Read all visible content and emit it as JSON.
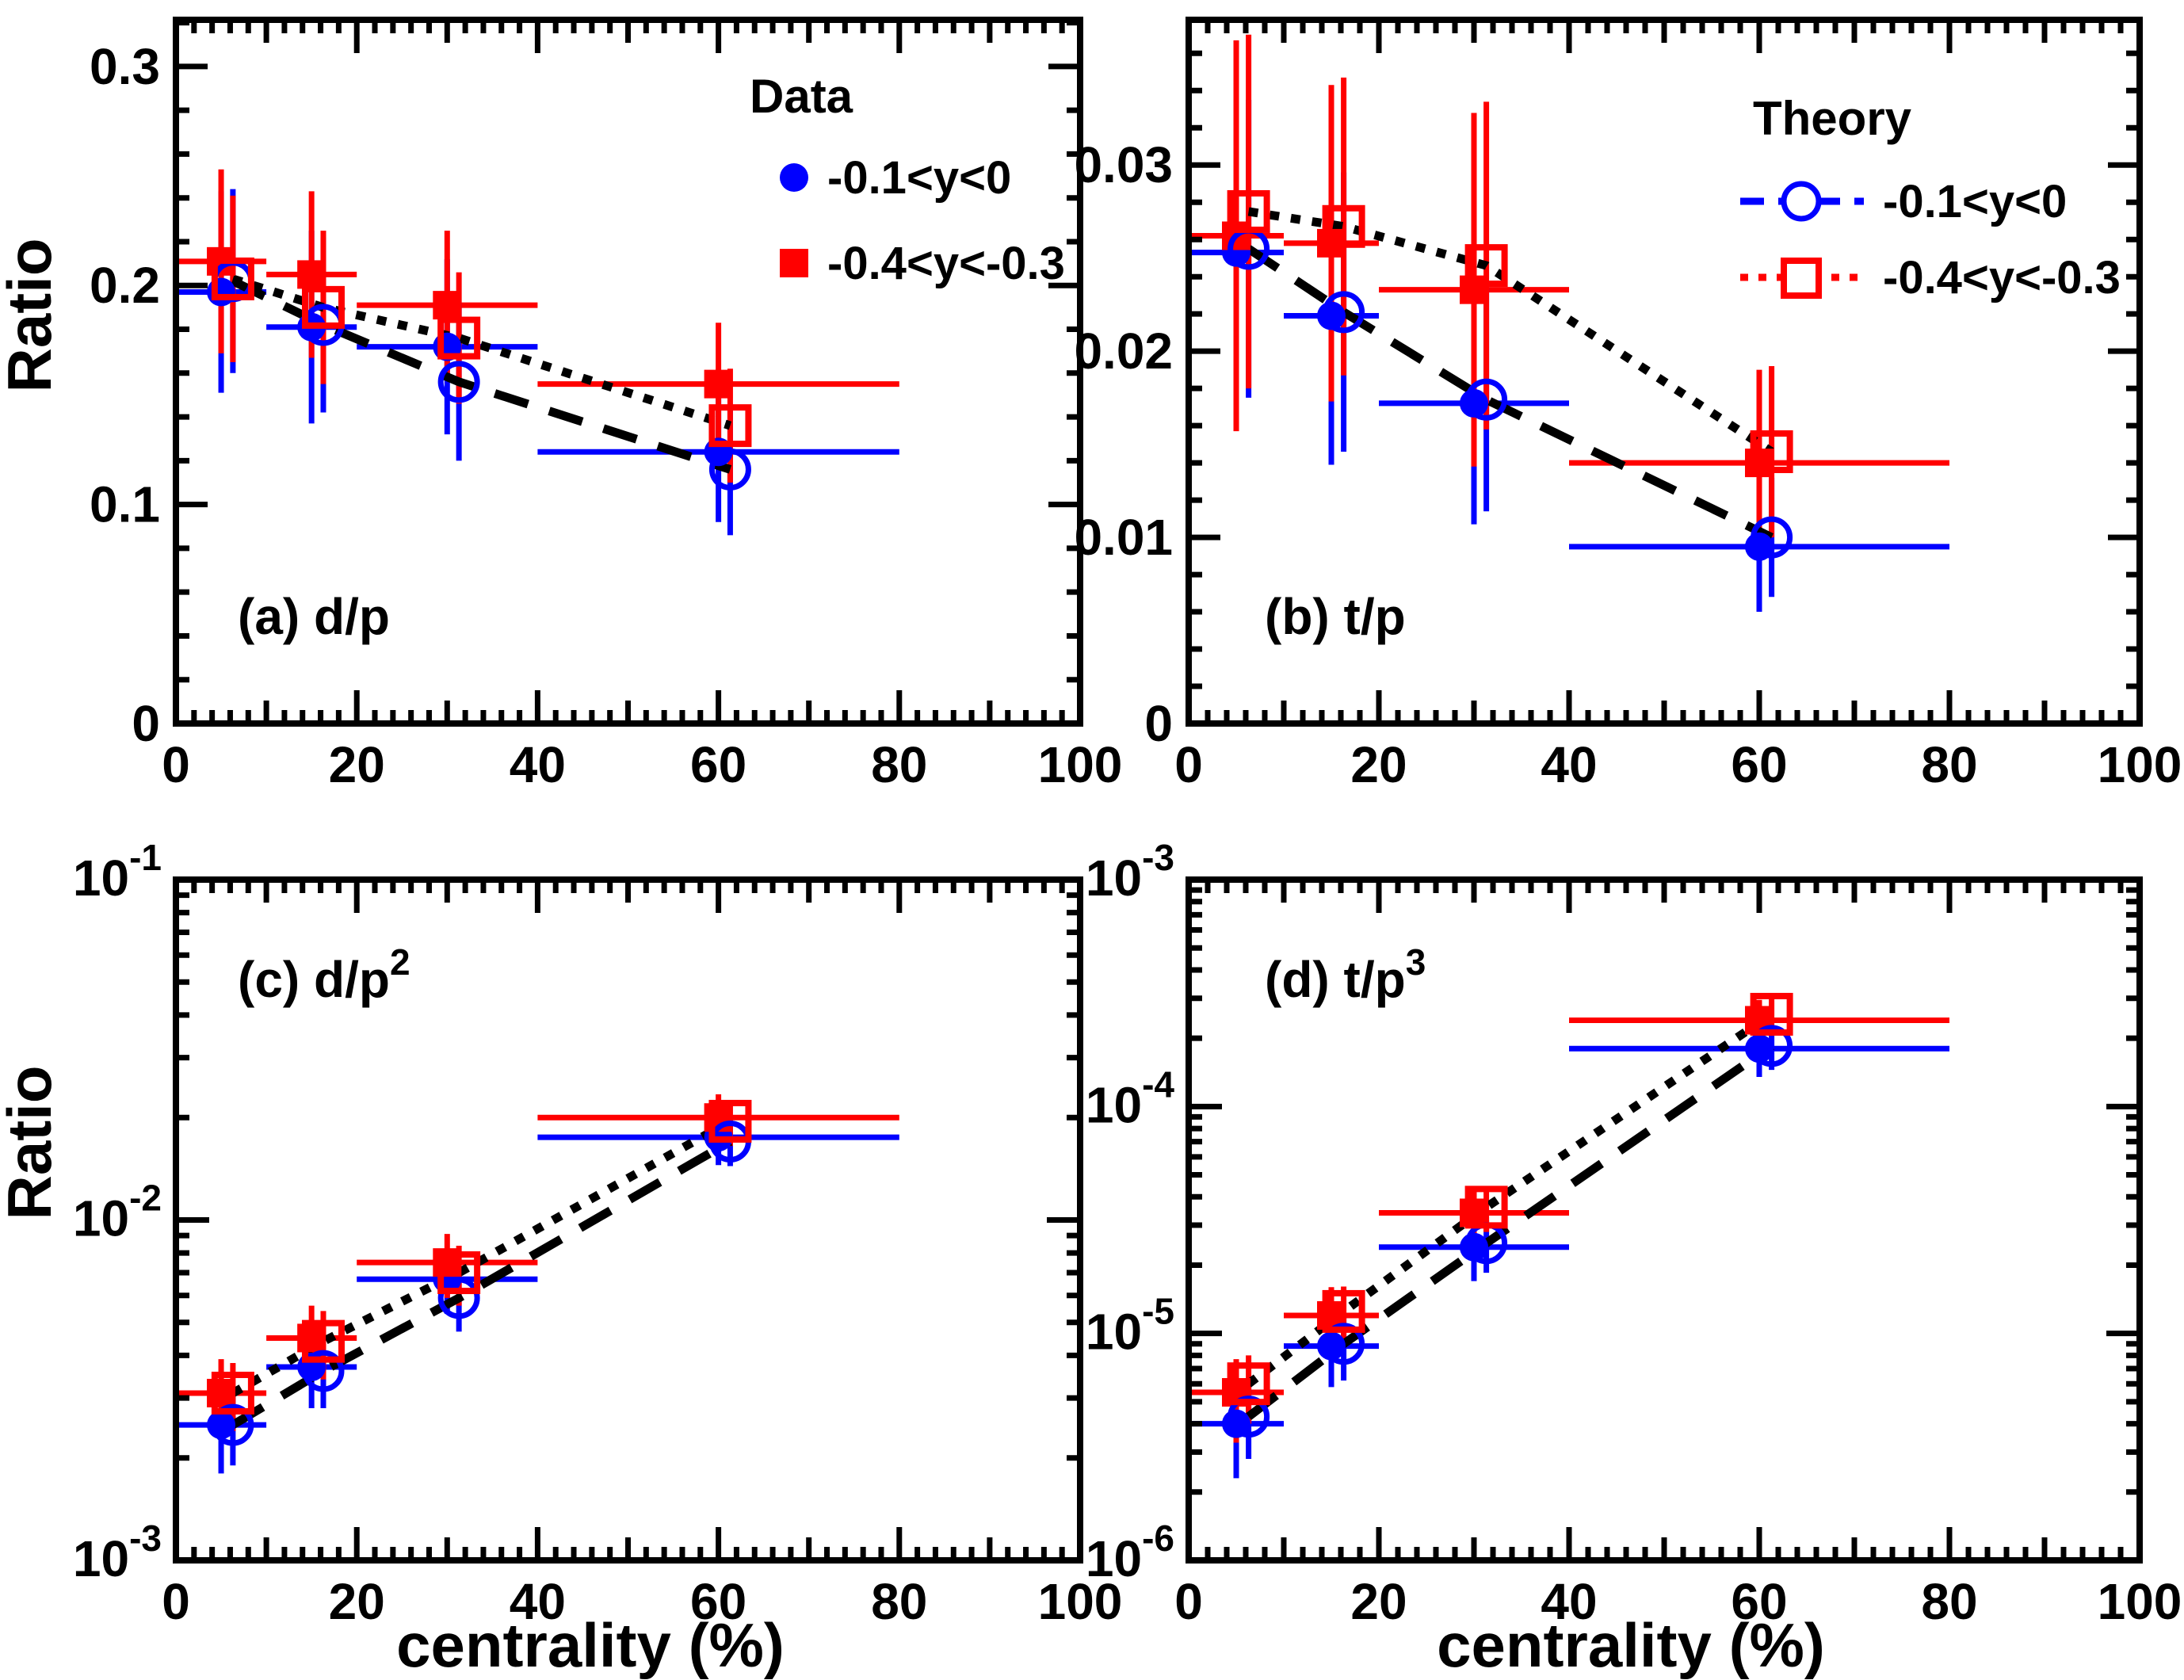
{
  "figure": {
    "background": "#ffffff",
    "axis_color": "#000000",
    "ylabel": "Ratio",
    "xlabel": "centrality  (%)",
    "theory_line_color": "#000000",
    "legend_data": {
      "title": "Data",
      "entries": [
        {
          "label": "-0.1<y<0",
          "color": "#0000ff",
          "marker": "filled-circle"
        },
        {
          "label": "-0.4<y<-0.3",
          "color": "#ff0000",
          "marker": "filled-square"
        }
      ]
    },
    "legend_theory": {
      "title": "Theory",
      "entries": [
        {
          "label": "-0.1<y<0",
          "color": "#0000ff",
          "marker": "open-circle",
          "line": "dashed"
        },
        {
          "label": "-0.4<y<-0.3",
          "color": "#ff0000",
          "marker": "open-square",
          "line": "dotted"
        }
      ]
    }
  },
  "chart_data": [
    {
      "id": "a",
      "type": "scatter",
      "label": "(a) d/p",
      "label_sup": "",
      "label_pos": "bottom-left",
      "xlabel": "centrality  (%)",
      "ylabel": "Ratio",
      "yscale": "linear",
      "ylim": [
        0,
        0.3213
      ],
      "ytick_vals": [
        0,
        0.1,
        0.2,
        0.3
      ],
      "ytick_labels": [
        "0",
        "0.1",
        "0.2",
        "0.3"
      ],
      "yminor_step": 0.02,
      "xlim": [
        0,
        100
      ],
      "xticks": [
        0,
        20,
        40,
        60,
        80,
        100
      ],
      "x": [
        5,
        15,
        30,
        60
      ],
      "xlo": [
        0,
        10,
        20,
        40
      ],
      "xhi": [
        10,
        20,
        40,
        80
      ],
      "theory_dx": 1.3,
      "series": [
        {
          "name": "data -0.1<y<0",
          "role": "data",
          "color": "#0000ff",
          "marker": "filled-circle",
          "values": [
            0.197,
            0.181,
            0.172,
            0.124
          ],
          "yerr": [
            0.046,
            0.044,
            0.04,
            0.032
          ]
        },
        {
          "name": "data -0.4<y<-0.3",
          "role": "data",
          "color": "#ff0000",
          "marker": "filled-square",
          "values": [
            0.211,
            0.205,
            0.191,
            0.155
          ],
          "yerr": [
            0.042,
            0.038,
            0.034,
            0.028
          ]
        },
        {
          "name": "theory -0.1<y<0",
          "role": "theory",
          "color": "#0000ff",
          "marker": "open-circle",
          "line": "dashed",
          "line_color": "#000000",
          "values": [
            0.202,
            0.182,
            0.156,
            0.116
          ],
          "yerr": [
            0.042,
            0.04,
            0.036,
            0.03
          ]
        },
        {
          "name": "theory -0.4<y<-0.3",
          "role": "theory",
          "color": "#ff0000",
          "marker": "open-square",
          "line": "dotted",
          "line_color": "#000000",
          "values": [
            0.203,
            0.19,
            0.176,
            0.136
          ],
          "yerr": [
            0.038,
            0.035,
            0.03,
            0.026
          ]
        }
      ]
    },
    {
      "id": "b",
      "type": "scatter",
      "label": "(b) t/p",
      "label_sup": "",
      "label_pos": "bottom-left",
      "xlabel": "centrality  (%)",
      "ylabel": "",
      "yscale": "linear",
      "ylim": [
        0,
        0.0378
      ],
      "ytick_vals": [
        0,
        0.01,
        0.02,
        0.03
      ],
      "ytick_labels": [
        "0",
        "0.01",
        "0.02",
        "0.03"
      ],
      "yminor_step": 0.002,
      "xlim": [
        0,
        100
      ],
      "xticks": [
        0,
        20,
        40,
        60,
        80,
        100
      ],
      "x": [
        5,
        15,
        30,
        60
      ],
      "xlo": [
        0,
        10,
        20,
        40
      ],
      "xhi": [
        10,
        20,
        40,
        80
      ],
      "theory_dx": 1.3,
      "series": [
        {
          "name": "data -0.1<y<0",
          "role": "data",
          "color": "#0000ff",
          "marker": "filled-circle",
          "values": [
            0.0253,
            0.0219,
            0.0172,
            0.0095
          ],
          "yerr": [
            0.0085,
            0.008,
            0.0065,
            0.0035
          ]
        },
        {
          "name": "data -0.4<y<-0.3",
          "role": "data",
          "color": "#ff0000",
          "marker": "filled-square",
          "values": [
            0.0262,
            0.0258,
            0.0233,
            0.014
          ],
          "yerr": [
            0.0105,
            0.0085,
            0.0095,
            0.005
          ]
        },
        {
          "name": "theory -0.1<y<0",
          "role": "theory",
          "color": "#0000ff",
          "marker": "open-circle",
          "line": "dashed",
          "line_color": "#000000",
          "values": [
            0.0255,
            0.0221,
            0.0174,
            0.01
          ],
          "yerr": [
            0.008,
            0.0075,
            0.006,
            0.0032
          ]
        },
        {
          "name": "theory -0.4<y<-0.3",
          "role": "theory",
          "color": "#ff0000",
          "marker": "open-square",
          "line": "dotted",
          "line_color": "#000000",
          "values": [
            0.0275,
            0.0267,
            0.0246,
            0.0146
          ],
          "yerr": [
            0.0095,
            0.008,
            0.0088,
            0.0046
          ]
        }
      ]
    },
    {
      "id": "c",
      "type": "scatter",
      "label": "(c) d/p",
      "label_sup": "2",
      "label_pos": "top-left",
      "xlabel": "centrality  (%)",
      "ylabel": "Ratio",
      "yscale": "log",
      "ylim": [
        0.001,
        0.1
      ],
      "ydecades": [
        -1,
        -2,
        -3
      ],
      "xlim": [
        0,
        100
      ],
      "xticks": [
        0,
        20,
        40,
        60,
        80,
        100
      ],
      "x": [
        5,
        15,
        30,
        60
      ],
      "xlo": [
        0,
        10,
        20,
        40
      ],
      "xhi": [
        10,
        20,
        40,
        80
      ],
      "theory_dx": 1.3,
      "series": [
        {
          "name": "data -0.1<y<0",
          "role": "data",
          "color": "#0000ff",
          "marker": "filled-circle",
          "values": [
            0.0025,
            0.0037,
            0.0067,
            0.0175
          ],
          "yerr": [
            0.0007,
            0.0009,
            0.0014,
            0.003
          ]
        },
        {
          "name": "data -0.4<y<-0.3",
          "role": "data",
          "color": "#ff0000",
          "marker": "filled-square",
          "values": [
            0.0031,
            0.0045,
            0.0075,
            0.02
          ],
          "yerr": [
            0.0008,
            0.0011,
            0.0016,
            0.0034
          ]
        },
        {
          "name": "theory -0.1<y<0",
          "role": "theory",
          "color": "#0000ff",
          "marker": "open-circle",
          "line": "dashed",
          "line_color": "#000000",
          "values": [
            0.0025,
            0.0036,
            0.0059,
            0.017
          ],
          "yerr": [
            0.0006,
            0.0008,
            0.0012,
            0.0026
          ]
        },
        {
          "name": "theory -0.4<y<-0.3",
          "role": "theory",
          "color": "#ff0000",
          "marker": "open-square",
          "line": "dotted",
          "line_color": "#000000",
          "values": [
            0.0031,
            0.0044,
            0.007,
            0.0195
          ],
          "yerr": [
            0.0007,
            0.001,
            0.0014,
            0.003
          ]
        }
      ]
    },
    {
      "id": "d",
      "type": "scatter",
      "label": "(d) t/p",
      "label_sup": "3",
      "label_pos": "top-left",
      "xlabel": "centrality  (%)",
      "ylabel": "",
      "yscale": "log",
      "ylim": [
        1e-06,
        0.001
      ],
      "ydecades": [
        -3,
        -4,
        -5,
        -6
      ],
      "xlim": [
        0,
        100
      ],
      "xticks": [
        0,
        20,
        40,
        60,
        80,
        100
      ],
      "x": [
        5,
        15,
        30,
        60
      ],
      "xlo": [
        0,
        10,
        20,
        40
      ],
      "xhi": [
        10,
        20,
        40,
        80
      ],
      "theory_dx": 1.3,
      "series": [
        {
          "name": "data -0.1<y<0",
          "role": "data",
          "color": "#0000ff",
          "marker": "filled-circle",
          "values": [
            4e-06,
            8.8e-06,
            2.4e-05,
            0.00018
          ],
          "yerr": [
            1.7e-06,
            3e-06,
            7e-06,
            4.5e-05
          ]
        },
        {
          "name": "data -0.4<y<-0.3",
          "role": "data",
          "color": "#ff0000",
          "marker": "filled-square",
          "values": [
            5.5e-06,
            1.2e-05,
            3.4e-05,
            0.00024
          ],
          "yerr": [
            2.2e-06,
            4e-06,
            9e-06,
            5.5e-05
          ]
        },
        {
          "name": "theory -0.1<y<0",
          "role": "theory",
          "color": "#0000ff",
          "marker": "open-circle",
          "line": "dashed",
          "line_color": "#000000",
          "values": [
            4.3e-06,
            9e-06,
            2.5e-05,
            0.000185
          ],
          "yerr": [
            1.5e-06,
            2.8e-06,
            6.5e-06,
            4e-05
          ]
        },
        {
          "name": "theory -0.4<y<-0.3",
          "role": "theory",
          "color": "#ff0000",
          "marker": "open-square",
          "line": "dotted",
          "line_color": "#000000",
          "values": [
            6e-06,
            1.25e-05,
            3.6e-05,
            0.000255
          ],
          "yerr": [
            2e-06,
            3.6e-06,
            8e-06,
            5e-05
          ]
        }
      ]
    }
  ]
}
